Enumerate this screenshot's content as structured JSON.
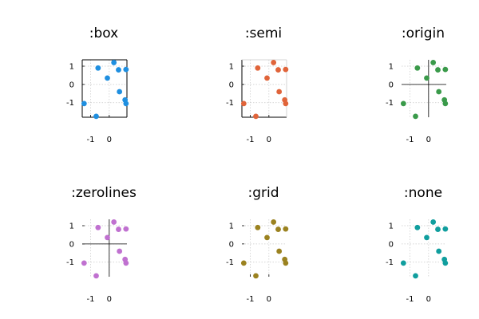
{
  "chart_data": [
    {
      "type": "scatter",
      "title": ":box",
      "framestyle": "box",
      "color": "#1f8fe0",
      "xlim": [
        -1.45,
        0.95
      ],
      "ylim": [
        -1.8,
        1.35
      ],
      "xticks": [
        -1,
        0
      ],
      "yticks": [
        -1,
        0,
        1
      ],
      "grid": true,
      "x": [
        -1.35,
        -0.7,
        -0.1,
        0.25,
        0.5,
        0.9,
        -0.6,
        0.55,
        0.85,
        0.9
      ],
      "y": [
        -1.05,
        -1.75,
        0.35,
        1.2,
        0.8,
        0.82,
        0.9,
        -0.4,
        -0.85,
        -1.05
      ]
    },
    {
      "type": "scatter",
      "title": ":semi",
      "framestyle": "semi",
      "color": "#e0643a",
      "xlim": [
        -1.45,
        0.95
      ],
      "ylim": [
        -1.8,
        1.35
      ],
      "xticks": [
        -1,
        0
      ],
      "yticks": [
        -1,
        0,
        1
      ],
      "grid": true,
      "x": [
        -1.35,
        -0.7,
        -0.1,
        0.25,
        0.5,
        0.9,
        -0.6,
        0.55,
        0.85,
        0.9
      ],
      "y": [
        -1.05,
        -1.75,
        0.35,
        1.2,
        0.8,
        0.82,
        0.9,
        -0.4,
        -0.85,
        -1.05
      ]
    },
    {
      "type": "scatter",
      "title": ":origin",
      "framestyle": "origin",
      "color": "#3a9a4a",
      "xlim": [
        -1.45,
        0.95
      ],
      "ylim": [
        -1.8,
        1.35
      ],
      "xticks": [
        -1,
        0
      ],
      "yticks": [
        -1,
        0,
        1
      ],
      "grid": true,
      "x": [
        -1.35,
        -0.7,
        -0.1,
        0.25,
        0.5,
        0.9,
        -0.6,
        0.55,
        0.85,
        0.9
      ],
      "y": [
        -1.05,
        -1.75,
        0.35,
        1.2,
        0.8,
        0.82,
        0.9,
        -0.4,
        -0.85,
        -1.05
      ]
    },
    {
      "type": "scatter",
      "title": ":zerolines",
      "framestyle": "zerolines",
      "color": "#c071d0",
      "xlim": [
        -1.45,
        0.95
      ],
      "ylim": [
        -1.8,
        1.35
      ],
      "xticks": [
        -1,
        0
      ],
      "yticks": [
        -1,
        0,
        1
      ],
      "grid": true,
      "x": [
        -1.35,
        -0.7,
        -0.1,
        0.25,
        0.5,
        0.9,
        -0.6,
        0.55,
        0.85,
        0.9
      ],
      "y": [
        -1.05,
        -1.75,
        0.35,
        1.2,
        0.8,
        0.82,
        0.9,
        -0.4,
        -0.85,
        -1.05
      ]
    },
    {
      "type": "scatter",
      "title": ":grid",
      "framestyle": "grid",
      "color": "#9b8220",
      "xlim": [
        -1.45,
        0.95
      ],
      "ylim": [
        -1.8,
        1.35
      ],
      "xticks": [
        -1,
        0
      ],
      "yticks": [
        -1,
        0,
        1
      ],
      "grid": true,
      "x": [
        -1.35,
        -0.7,
        -0.1,
        0.25,
        0.5,
        0.9,
        -0.6,
        0.55,
        0.85,
        0.9
      ],
      "y": [
        -1.05,
        -1.75,
        0.35,
        1.2,
        0.8,
        0.82,
        0.9,
        -0.4,
        -0.85,
        -1.05
      ]
    },
    {
      "type": "scatter",
      "title": ":none",
      "framestyle": "none",
      "color": "#109e9e",
      "xlim": [
        -1.45,
        0.95
      ],
      "ylim": [
        -1.8,
        1.35
      ],
      "xticks": [
        -1,
        0
      ],
      "yticks": [
        -1,
        0,
        1
      ],
      "grid": true,
      "x": [
        -1.35,
        -0.7,
        -0.1,
        0.25,
        0.5,
        0.9,
        -0.6,
        0.55,
        0.85,
        0.9
      ],
      "y": [
        -1.05,
        -1.75,
        0.35,
        1.2,
        0.8,
        0.82,
        0.9,
        -0.4,
        -0.85,
        -1.05
      ]
    }
  ]
}
